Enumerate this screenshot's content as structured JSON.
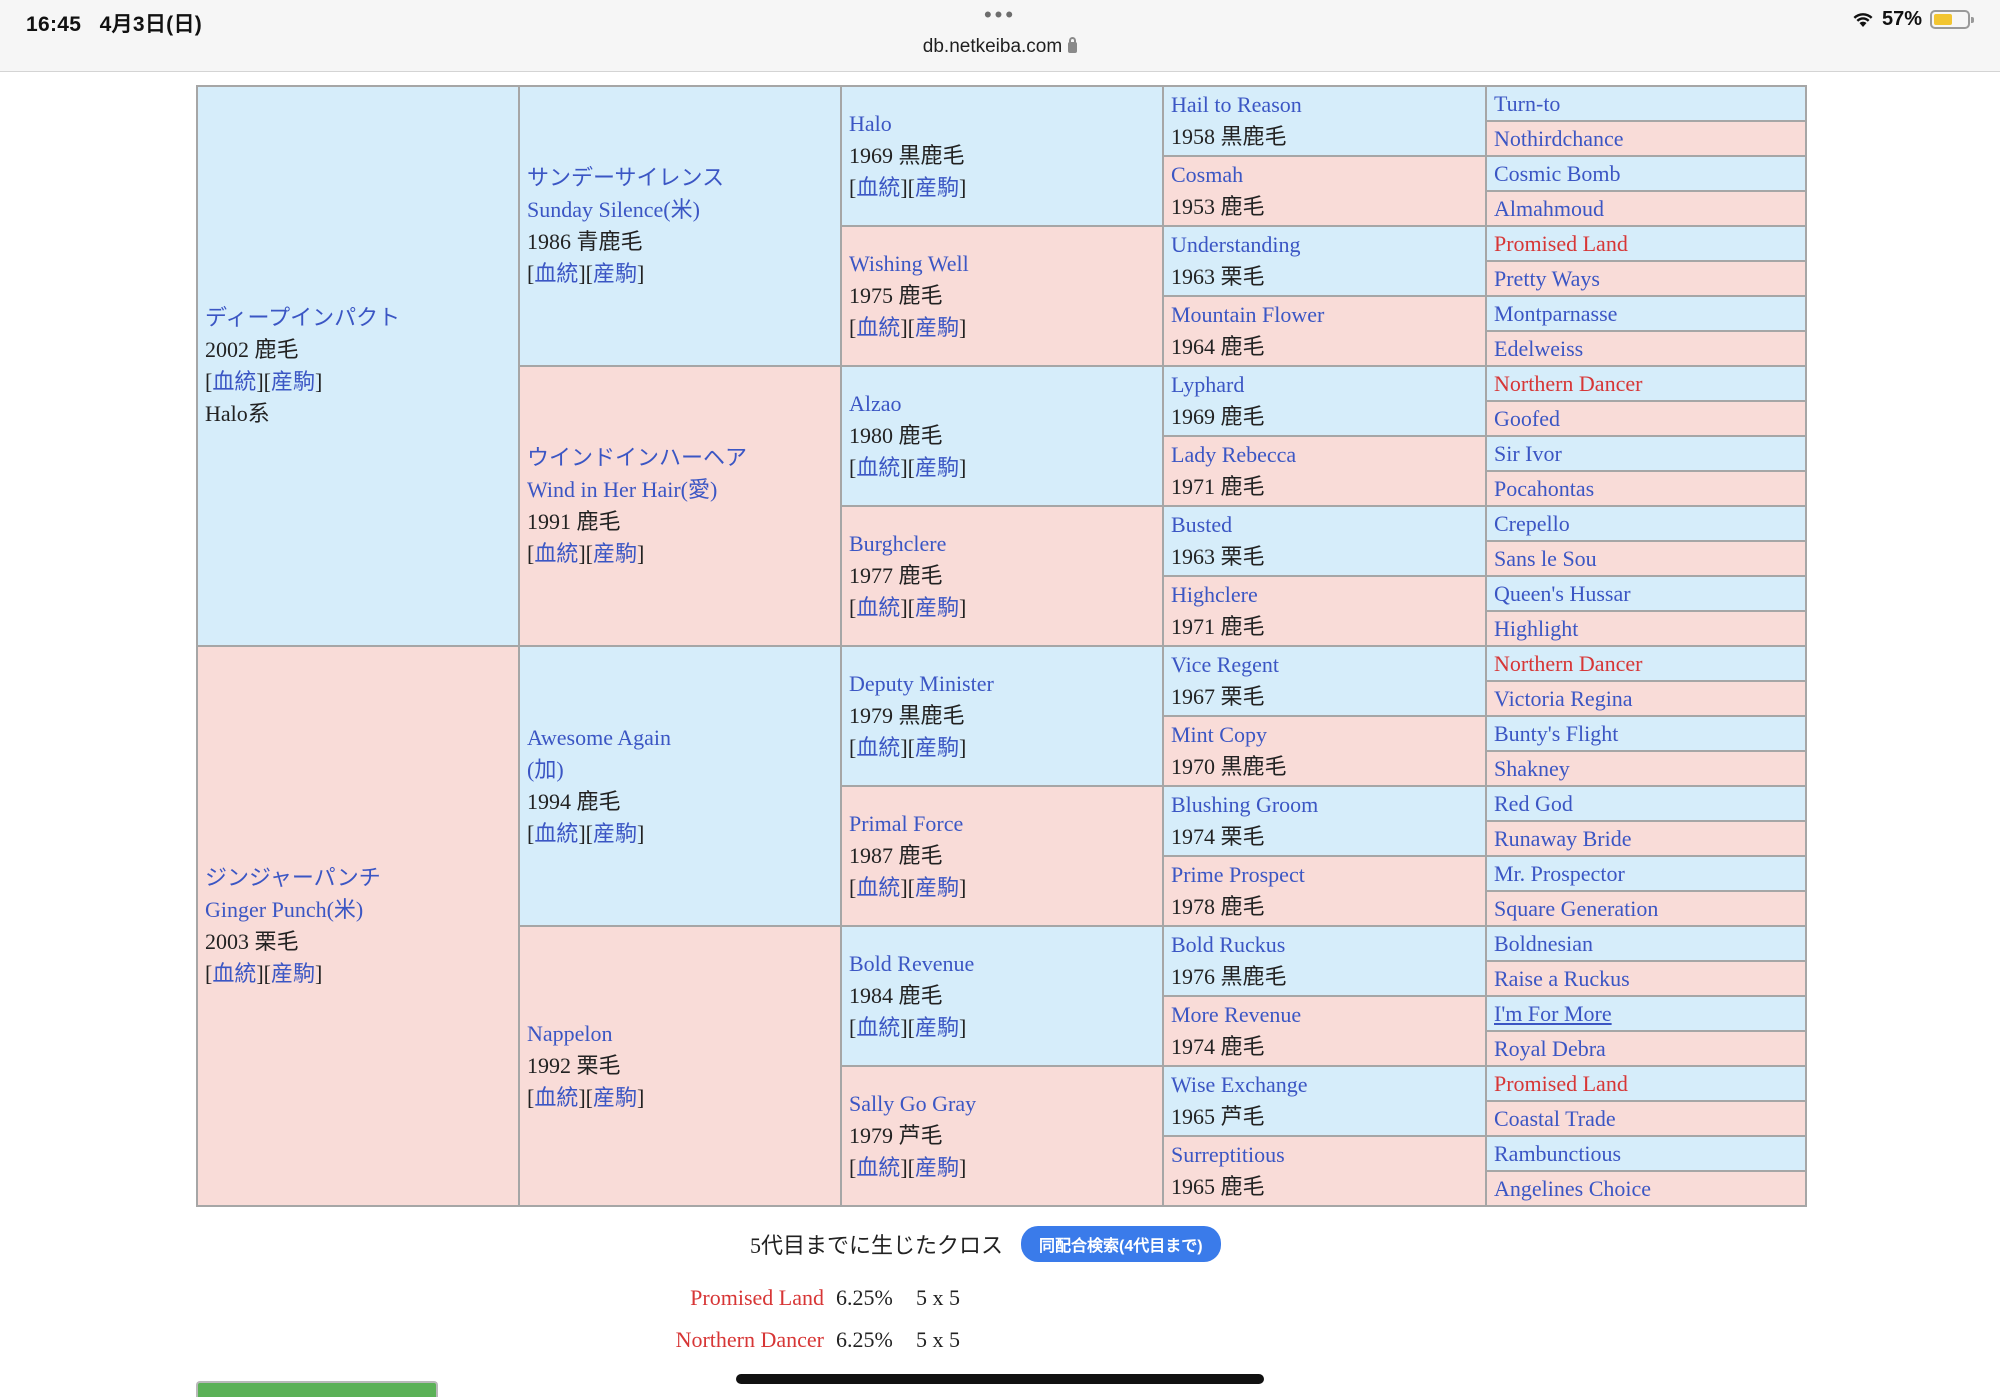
{
  "status_bar": {
    "time": "16:45",
    "date": "4月3日(日)",
    "battery": "57%",
    "battery_level": 0.57
  },
  "browser": {
    "menu_dots": "•••",
    "url": "db.netkeiba.com"
  },
  "link_labels": {
    "pedigree": "血統",
    "offspring": "産駒"
  },
  "pedigree": {
    "sire": {
      "name": "ディープインパクト",
      "info": "2002 鹿毛",
      "line": "Halo系",
      "sire": {
        "name_jp": "サンデーサイレンス",
        "name_en": "Sunday Silence(米)",
        "info": "1986 青鹿毛",
        "sire": {
          "name": "Halo",
          "info": "1969 黒鹿毛",
          "sire": {
            "name": "Hail to Reason",
            "info": "1958 黒鹿毛",
            "sire": "Turn-to",
            "dam": "Nothirdchance"
          },
          "dam": {
            "name": "Cosmah",
            "info": "1953 鹿毛",
            "sire": "Cosmic Bomb",
            "dam": "Almahmoud"
          }
        },
        "dam": {
          "name": "Wishing Well",
          "info": "1975 鹿毛",
          "sire": {
            "name": "Understanding",
            "info": "1963 栗毛",
            "sire": "Promised Land",
            "dam": "Pretty Ways"
          },
          "dam": {
            "name": "Mountain Flower",
            "info": "1964 鹿毛",
            "sire": "Montparnasse",
            "dam": "Edelweiss"
          }
        }
      },
      "dam": {
        "name_jp": "ウインドインハーヘア",
        "name_en": "Wind in Her Hair(愛)",
        "info": "1991 鹿毛",
        "sire": {
          "name": "Alzao",
          "info": "1980 鹿毛",
          "sire": {
            "name": "Lyphard",
            "info": "1969 鹿毛",
            "sire": "Northern Dancer",
            "dam": "Goofed"
          },
          "dam": {
            "name": "Lady Rebecca",
            "info": "1971 鹿毛",
            "sire": "Sir Ivor",
            "dam": "Pocahontas"
          }
        },
        "dam": {
          "name": "Burghclere",
          "info": "1977 鹿毛",
          "sire": {
            "name": "Busted",
            "info": "1963 栗毛",
            "sire": "Crepello",
            "dam": "Sans le Sou"
          },
          "dam": {
            "name": "Highclere",
            "info": "1971 鹿毛",
            "sire": "Queen's Hussar",
            "dam": "Highlight"
          }
        }
      }
    },
    "dam": {
      "name_jp": "ジンジャーパンチ",
      "name_en": "Ginger Punch(米)",
      "info": "2003 栗毛",
      "sire": {
        "name_en": "Awesome Again",
        "name_suffix": "(加)",
        "info": "1994 鹿毛",
        "sire": {
          "name": "Deputy Minister",
          "info": "1979 黒鹿毛",
          "sire": {
            "name": "Vice Regent",
            "info": "1967 栗毛",
            "sire": "Northern Dancer",
            "dam": "Victoria Regina"
          },
          "dam": {
            "name": "Mint Copy",
            "info": "1970 黒鹿毛",
            "sire": "Bunty's Flight",
            "dam": "Shakney"
          }
        },
        "dam": {
          "name": "Primal Force",
          "info": "1987 鹿毛",
          "sire": {
            "name": "Blushing Groom",
            "info": "1974 栗毛",
            "sire": "Red God",
            "dam": "Runaway Bride"
          },
          "dam": {
            "name": "Prime Prospect",
            "info": "1978 鹿毛",
            "sire": "Mr. Prospector",
            "dam": "Square Generation"
          }
        }
      },
      "dam": {
        "name_en": "Nappelon",
        "info": "1992 栗毛",
        "sire": {
          "name": "Bold Revenue",
          "info": "1984 鹿毛",
          "sire": {
            "name": "Bold Ruckus",
            "info": "1976 黒鹿毛",
            "sire": "Boldnesian",
            "dam": "Raise a Ruckus"
          },
          "dam": {
            "name": "More Revenue",
            "info": "1974 鹿毛",
            "sire": "I'm For More",
            "dam": "Royal Debra"
          }
        },
        "dam": {
          "name": "Sally Go Gray",
          "info": "1979 芦毛",
          "sire": {
            "name": "Wise Exchange",
            "info": "1965 芦毛",
            "sire": "Promised Land",
            "dam": "Coastal Trade"
          },
          "dam": {
            "name": "Surreptitious",
            "info": "1965 鹿毛",
            "sire": "Rambunctious",
            "dam": "Angelines Choice"
          }
        }
      }
    }
  },
  "crosses": {
    "title": "5代目までに生じたクロス",
    "search_button": "同配合検索(4代目まで)",
    "rows": [
      {
        "name": "Promised Land",
        "percent": "6.25%",
        "gen": "5 x 5"
      },
      {
        "name": "Northern Dancer",
        "percent": "6.25%",
        "gen": "5 x 5"
      }
    ]
  },
  "colors": {
    "male_bg": "#d6edfa",
    "female_bg": "#f9dcd8",
    "link": "#3b56c4",
    "cross_highlight": "#d73636",
    "button": "#3a7bea"
  }
}
